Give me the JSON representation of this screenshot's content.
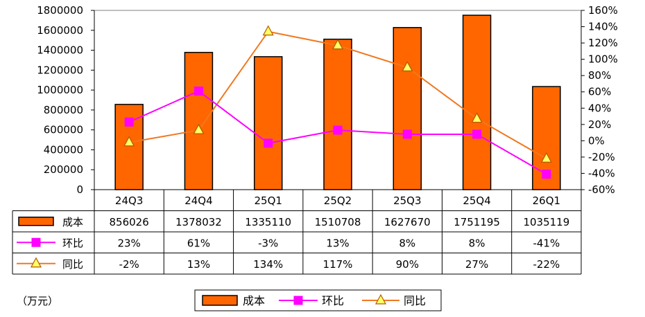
{
  "chart_data": {
    "type": "bar",
    "categories": [
      "24Q3",
      "24Q4",
      "25Q1",
      "25Q2",
      "25Q3",
      "25Q4",
      "26Q1"
    ],
    "series": [
      {
        "name": "成本",
        "type": "bar",
        "axis": "left",
        "color": "#FF6600",
        "values": [
          856026,
          1378032,
          1335110,
          1510708,
          1627670,
          1751195,
          1035119
        ],
        "labels": [
          "856026",
          "1378032",
          "1335110",
          "1510708",
          "1627670",
          "1751195",
          "1035119"
        ]
      },
      {
        "name": "环比",
        "type": "line",
        "axis": "right",
        "color": "#FF00FF",
        "marker": "square",
        "values": [
          23,
          61,
          -3,
          13,
          8,
          8,
          -41
        ],
        "labels": [
          "23%",
          "61%",
          "-3%",
          "13%",
          "8%",
          "8%",
          "-41%"
        ]
      },
      {
        "name": "同比",
        "type": "line",
        "axis": "right",
        "color": "#F07820",
        "marker": "triangle",
        "values": [
          -2,
          13,
          134,
          117,
          90,
          27,
          -22
        ],
        "labels": [
          "-2%",
          "13%",
          "134%",
          "117%",
          "90%",
          "27%",
          "-22%"
        ]
      }
    ],
    "y_left": {
      "min": 0,
      "max": 1800000,
      "step": 200000,
      "ticks": [
        "0",
        "200000",
        "400000",
        "600000",
        "800000",
        "1000000",
        "1200000",
        "1400000",
        "1600000",
        "1800000"
      ]
    },
    "y_right": {
      "min": -60,
      "max": 160,
      "step": 20,
      "ticks": [
        "-60%",
        "-40%",
        "-20%",
        "0%",
        "20%",
        "40%",
        "60%",
        "80%",
        "100%",
        "120%",
        "140%",
        "160%"
      ]
    },
    "unit_note": "（万元）",
    "grid": false,
    "legend_position": "bottom-center",
    "data_table": true
  }
}
